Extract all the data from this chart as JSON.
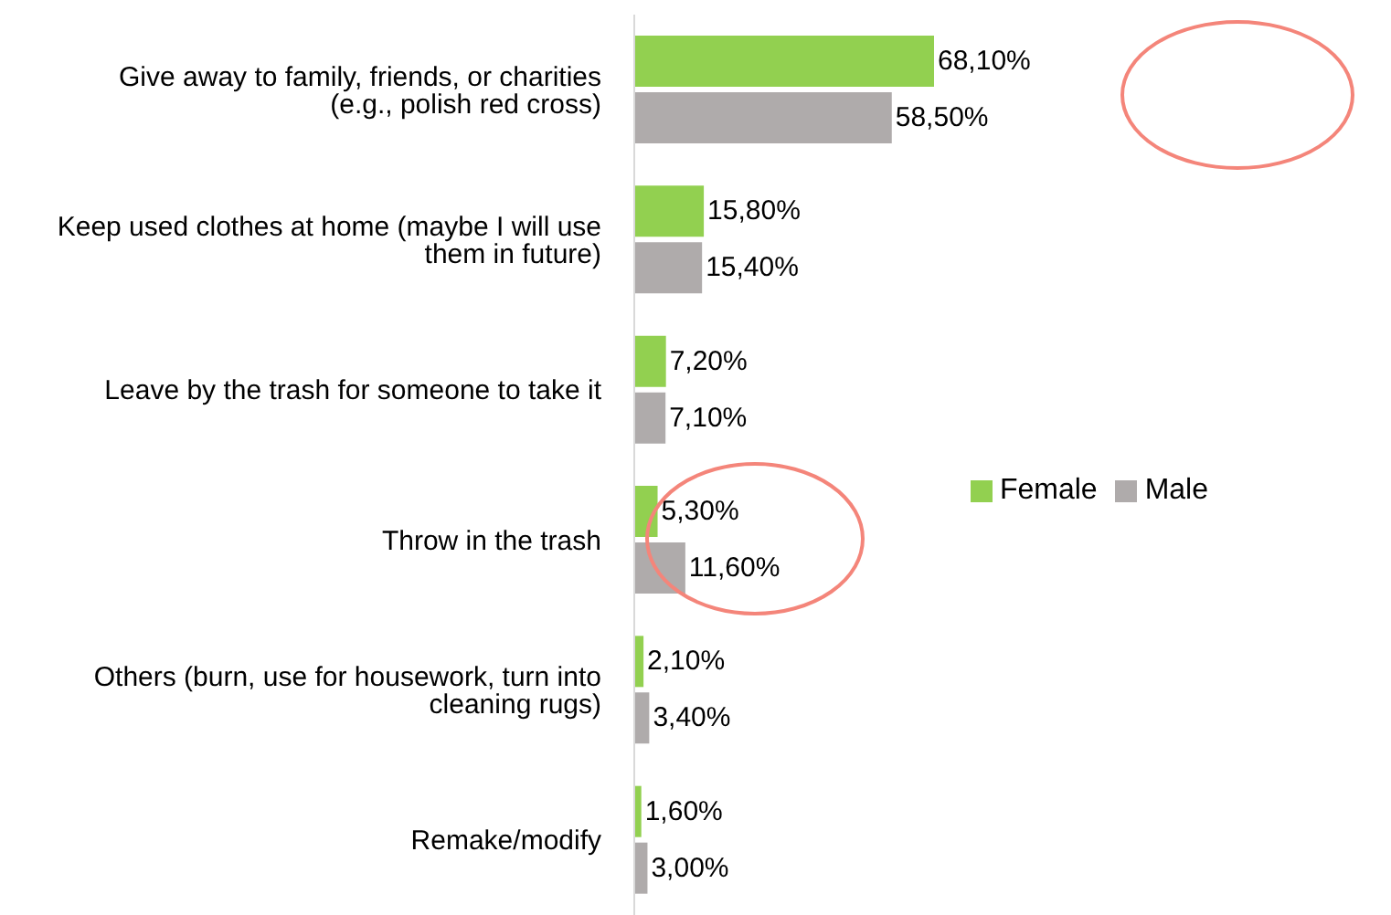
{
  "chart_data": {
    "type": "bar",
    "orientation": "horizontal",
    "categories": [
      "Give away to family, friends, or charities (e.g., polish red cross)",
      "Keep used clothes at home (maybe I will use them in future)",
      "Leave by the trash for someone to take it",
      "Throw in the trash",
      "Others (burn, use for housework, turn into cleaning rugs)",
      "Remake/modify"
    ],
    "series": [
      {
        "name": "Female",
        "color": "#92d050",
        "values": [
          68.1,
          15.8,
          7.2,
          5.3,
          2.1,
          1.6
        ],
        "value_labels": [
          "68,10%",
          "15,80%",
          "7,20%",
          "5,30%",
          "2,10%",
          "1,60%"
        ]
      },
      {
        "name": "Male",
        "color": "#afabab",
        "values": [
          58.5,
          15.4,
          7.1,
          11.6,
          3.4,
          3.0
        ],
        "value_labels": [
          "58,50%",
          "15,40%",
          "7,10%",
          "11,60%",
          "3,40%",
          "3,00%"
        ]
      }
    ],
    "legend": "right",
    "grid": false
  }
}
